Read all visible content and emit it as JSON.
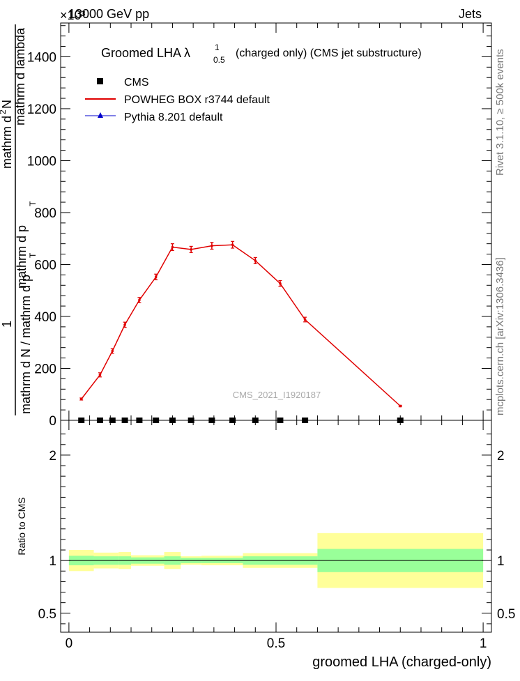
{
  "header": {
    "energy_label": "13000 GeV pp",
    "process_label": "Jets",
    "exponent_label": "×10³"
  },
  "side_labels": {
    "rivet": "Rivet 3.1.10, ≥ 500k events",
    "mcplots": "mcplots.cern.ch [arXiv:1306.3436]"
  },
  "chart_data": [
    {
      "type": "line",
      "title": "Groomed LHA  λ",
      "title_sup": "1",
      "title_sub": "0.5",
      "title_suffix": "(charged only) (CMS jet substructure)",
      "ylabel_numerator": "1",
      "ylabel_denominator": "mathrm d N / mathrm d p",
      "ylabel_den_sub": "T",
      "ylabel_rest": " mathrm d p",
      "ylabel_rest_sub": "T",
      "ylabel_rest2": " mathrm d lambda",
      "ylabel_num2": "mathrm d",
      "ylabel_num2_sup": "2",
      "ylabel_num2_rest": "N",
      "analysis_id": "CMS_2021_I1920187",
      "ylim": [
        0,
        1530
      ],
      "xlim": [
        -0.02,
        1.02
      ],
      "y_ticks": [
        0,
        200,
        400,
        600,
        800,
        1000,
        1200,
        1400
      ],
      "y_tick_labels": [
        "0",
        "200",
        "400",
        "600",
        "800",
        "1000",
        "1200",
        "1400"
      ],
      "legend": [
        {
          "label": "CMS",
          "marker": "square",
          "color": "#000000"
        },
        {
          "label": "POWHEG BOX r3744 default",
          "marker": "line",
          "color": "#e00000"
        },
        {
          "label": "Pythia 8.201 default",
          "marker": "triangle",
          "color": "#0000cc"
        }
      ],
      "cms_points": {
        "x": [
          0.03,
          0.075,
          0.105,
          0.135,
          0.17,
          0.21,
          0.25,
          0.295,
          0.345,
          0.395,
          0.45,
          0.51,
          0.57,
          0.8
        ],
        "y": [
          0,
          0,
          0,
          0,
          0,
          0,
          0,
          0,
          0,
          0,
          0,
          0,
          0,
          0
        ]
      },
      "series": [
        {
          "name": "POWHEG BOX r3744 default",
          "color": "#e00000",
          "x": [
            0.03,
            0.075,
            0.105,
            0.135,
            0.17,
            0.21,
            0.25,
            0.295,
            0.345,
            0.395,
            0.45,
            0.51,
            0.57,
            0.8
          ],
          "y": [
            82,
            175,
            267,
            368,
            463,
            552,
            667,
            658,
            672,
            676,
            615,
            527,
            388,
            55
          ],
          "err": [
            4,
            8,
            9,
            10,
            10,
            11,
            13,
            12,
            13,
            13,
            12,
            11,
            9,
            3
          ]
        }
      ]
    },
    {
      "type": "area",
      "ylabel": "Ratio to CMS",
      "xlabel": "groomed LHA (charged-only)",
      "ylim": [
        0.32,
        2.33
      ],
      "xlim": [
        -0.02,
        1.02
      ],
      "y_ticks": [
        0.5,
        1,
        2
      ],
      "y_tick_labels": [
        "0.5",
        "1",
        "2"
      ],
      "x_ticks": [
        0,
        0.5,
        1
      ],
      "x_tick_labels": [
        "0",
        "0.5",
        "1"
      ],
      "bins": [
        {
          "lo": 0.0,
          "hi": 0.06,
          "stat": 0.045,
          "total": 0.1
        },
        {
          "lo": 0.06,
          "hi": 0.12,
          "stat": 0.04,
          "total": 0.075
        },
        {
          "lo": 0.12,
          "hi": 0.15,
          "stat": 0.04,
          "total": 0.08
        },
        {
          "lo": 0.15,
          "hi": 0.23,
          "stat": 0.03,
          "total": 0.05
        },
        {
          "lo": 0.23,
          "hi": 0.27,
          "stat": 0.04,
          "total": 0.08
        },
        {
          "lo": 0.27,
          "hi": 0.32,
          "stat": 0.025,
          "total": 0.04
        },
        {
          "lo": 0.32,
          "hi": 0.42,
          "stat": 0.025,
          "total": 0.045
        },
        {
          "lo": 0.42,
          "hi": 0.6,
          "stat": 0.04,
          "total": 0.07
        },
        {
          "lo": 0.6,
          "hi": 1.0,
          "stat": 0.11,
          "total": 0.26
        }
      ],
      "total_color": "#ffff99",
      "stat_color": "#99ff99"
    }
  ]
}
